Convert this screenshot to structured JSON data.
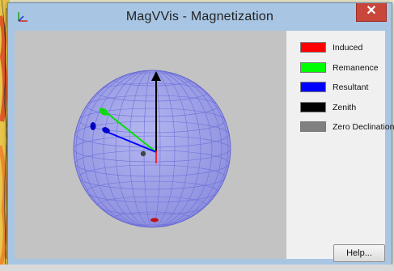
{
  "window": {
    "title": "MagVVis - Magnetization",
    "close_symbol": "✕",
    "app_icon": "axes-icon"
  },
  "legend": {
    "items": [
      {
        "label": "Induced",
        "color": "#ff0000"
      },
      {
        "label": "Remanence",
        "color": "#00ff00"
      },
      {
        "label": "Resultant",
        "color": "#0000ff"
      },
      {
        "label": "Zenith",
        "color": "#000000"
      },
      {
        "label": "Zero Declination",
        "color": "#808080"
      }
    ]
  },
  "buttons": {
    "help_label": "Help..."
  },
  "colors": {
    "sphere_fill": "#9a9ce8",
    "sphere_grid": "#6e70d8",
    "viewport_bg": "#c3c3c3",
    "titlebar": "#a8c6e4",
    "close_red": "#c8463a"
  }
}
